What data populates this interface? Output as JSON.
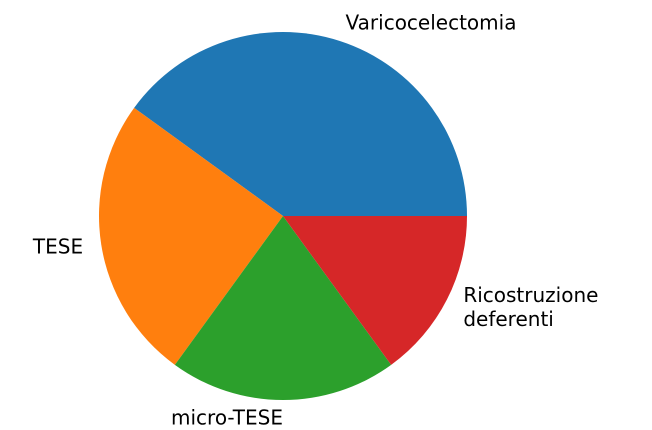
{
  "chart_data": {
    "type": "pie",
    "categories": [
      "Varicocelectomia",
      "TESE",
      "micro-TESE",
      "Ricostruzione\ndeferenti"
    ],
    "values": [
      40,
      25,
      20,
      15
    ],
    "colors": [
      "#1f77b4",
      "#ff7f0e",
      "#2ca02c",
      "#d62728"
    ]
  }
}
